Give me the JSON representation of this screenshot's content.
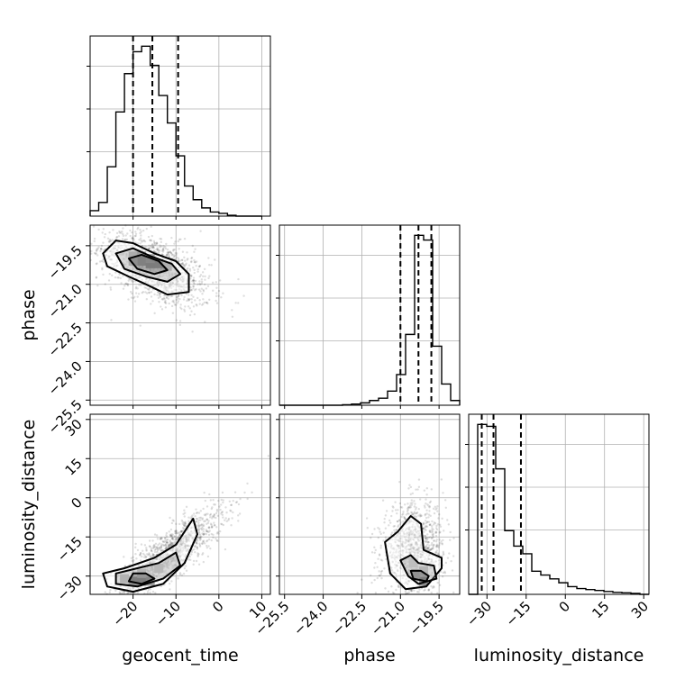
{
  "chart_data": {
    "type": "corner",
    "parameters": [
      {
        "name": "geocent_time",
        "label": "geocent_time",
        "range": [
          -30,
          12
        ],
        "ticks": [
          -20,
          -10,
          0,
          10
        ],
        "tick_labels": [
          "−20",
          "−10",
          "0",
          "10"
        ],
        "quantiles": [
          -20,
          -15.5,
          -9.5
        ]
      },
      {
        "name": "phase",
        "label": "phase",
        "range": [
          -25.7,
          -18.7
        ],
        "ticks": [
          -25.5,
          -24.0,
          -22.5,
          -21.0,
          -19.5
        ],
        "tick_labels": [
          "−25.5",
          "−24.0",
          "−22.5",
          "−21.0",
          "−19.5"
        ],
        "quantiles": [
          -21.0,
          -20.3,
          -19.8
        ]
      },
      {
        "name": "luminosity_distance",
        "label": "luminosity_distance",
        "range": [
          -37,
          32
        ],
        "ticks": [
          -30,
          -15,
          0,
          15,
          30
        ],
        "tick_labels": [
          "−30",
          "−15",
          "0",
          "15",
          "30"
        ],
        "quantiles": [
          -32,
          -27.5,
          -17
        ]
      }
    ],
    "histograms": [
      {
        "param": "geocent_time",
        "bin_edges": [
          -30,
          -28,
          -26,
          -24,
          -22,
          -20,
          -18,
          -16,
          -14,
          -12,
          -10,
          -8,
          -6,
          -4,
          -2,
          0,
          2,
          4,
          6,
          8,
          10
        ],
        "counts": [
          2,
          5,
          18,
          38,
          52,
          60,
          62,
          55,
          44,
          34,
          22,
          11,
          6,
          3,
          1.5,
          1,
          0.3,
          0,
          0,
          0
        ]
      },
      {
        "param": "phase",
        "bin_edges": [
          -25.7,
          -25.35,
          -25.0,
          -24.65,
          -24.3,
          -23.95,
          -23.6,
          -23.25,
          -22.9,
          -22.55,
          -22.2,
          -21.85,
          -21.5,
          -21.15,
          -20.8,
          -20.45,
          -20.1,
          -19.75,
          -19.4,
          -19.05,
          -18.7
        ],
        "counts": [
          0,
          0,
          0,
          0,
          0,
          0,
          0,
          0.2,
          0.5,
          1,
          2,
          3,
          6,
          13,
          30,
          72,
          70,
          25,
          9,
          2
        ]
      },
      {
        "param": "luminosity_distance",
        "bin_edges": [
          -37,
          -33.55,
          -30.1,
          -26.65,
          -23.2,
          -19.75,
          -16.3,
          -12.85,
          -9.4,
          -5.95,
          -2.5,
          0.95,
          4.4,
          7.85,
          11.3,
          14.75,
          18.2,
          21.65,
          25.1,
          28.55,
          32
        ],
        "counts": [
          0,
          88,
          87,
          65,
          33,
          25,
          21,
          12,
          10,
          8,
          6,
          4,
          3,
          2.5,
          2,
          1.5,
          1,
          0.8,
          0.5,
          0
        ]
      }
    ],
    "contour_levels": [
      0.39,
      0.86,
      0.99
    ],
    "contours": [
      {
        "x": "geocent_time",
        "y": "phase",
        "levels": [
          [
            [
              -27,
              -19.8
            ],
            [
              -24,
              -19.3
            ],
            [
              -20,
              -19.4
            ],
            [
              -15,
              -19.8
            ],
            [
              -10,
              -20.1
            ],
            [
              -7,
              -20.6
            ],
            [
              -7,
              -21.3
            ],
            [
              -12,
              -21.4
            ],
            [
              -17,
              -21.0
            ],
            [
              -21,
              -20.7
            ],
            [
              -26,
              -20.3
            ]
          ],
          [
            [
              -24,
              -19.8
            ],
            [
              -20,
              -19.6
            ],
            [
              -16,
              -19.9
            ],
            [
              -11,
              -20.2
            ],
            [
              -9,
              -20.6
            ],
            [
              -12,
              -20.9
            ],
            [
              -17,
              -20.7
            ],
            [
              -22,
              -20.4
            ]
          ],
          [
            [
              -21,
              -20.0
            ],
            [
              -18,
              -19.85
            ],
            [
              -14,
              -20.1
            ],
            [
              -12,
              -20.45
            ],
            [
              -15,
              -20.6
            ],
            [
              -19,
              -20.4
            ]
          ]
        ]
      },
      {
        "x": "geocent_time",
        "y": "luminosity_distance",
        "levels": [
          [
            [
              -27,
              -29
            ],
            [
              -22,
              -27
            ],
            [
              -15,
              -23
            ],
            [
              -10,
              -18
            ],
            [
              -6,
              -8
            ],
            [
              -5,
              -14
            ],
            [
              -8,
              -25
            ],
            [
              -13,
              -33
            ],
            [
              -20,
              -36
            ],
            [
              -26,
              -34
            ]
          ],
          [
            [
              -24,
              -29
            ],
            [
              -19,
              -27
            ],
            [
              -14,
              -25
            ],
            [
              -10,
              -21
            ],
            [
              -9,
              -26
            ],
            [
              -13,
              -31
            ],
            [
              -19,
              -34
            ],
            [
              -24,
              -33
            ]
          ],
          [
            [
              -20,
              -29
            ],
            [
              -17,
              -29
            ],
            [
              -15,
              -31
            ],
            [
              -18,
              -33
            ],
            [
              -21,
              -32
            ]
          ]
        ]
      },
      {
        "x": "phase",
        "y": "luminosity_distance",
        "levels": [
          [
            [
              -21.6,
              -17
            ],
            [
              -21.1,
              -13
            ],
            [
              -20.6,
              -7
            ],
            [
              -20.2,
              -10
            ],
            [
              -20.1,
              -20
            ],
            [
              -19.4,
              -23
            ],
            [
              -19.4,
              -27
            ],
            [
              -20.0,
              -34
            ],
            [
              -20.8,
              -35
            ],
            [
              -21.4,
              -29
            ]
          ],
          [
            [
              -21.0,
              -24
            ],
            [
              -20.6,
              -22
            ],
            [
              -20.3,
              -25
            ],
            [
              -19.7,
              -26
            ],
            [
              -19.6,
              -31
            ],
            [
              -20.3,
              -33
            ],
            [
              -20.7,
              -30
            ]
          ],
          [
            [
              -20.6,
              -28
            ],
            [
              -20.2,
              -28
            ],
            [
              -19.9,
              -30
            ],
            [
              -20.0,
              -32
            ],
            [
              -20.5,
              -31
            ]
          ]
        ]
      }
    ],
    "density_cores": [
      {
        "x": "geocent_time",
        "y": "phase",
        "cells": [
          [
            -20,
            -19.9,
            0.5
          ],
          [
            -18,
            -19.9,
            0.75
          ],
          [
            -18,
            -20.1,
            0.9
          ],
          [
            -16,
            -20.2,
            1.0
          ],
          [
            -14,
            -20.2,
            0.95
          ],
          [
            -20,
            -20.1,
            0.55
          ],
          [
            -16,
            -20.0,
            0.7
          ],
          [
            -12,
            -20.3,
            0.45
          ]
        ]
      },
      {
        "x": "geocent_time",
        "y": "luminosity_distance",
        "cells": [
          [
            -20,
            -32,
            0.95
          ],
          [
            -18,
            -32,
            1.0
          ],
          [
            -16,
            -32,
            0.8
          ],
          [
            -18,
            -29,
            0.35
          ],
          [
            -14,
            -27,
            0.3
          ],
          [
            -22,
            -31,
            0.4
          ]
        ]
      },
      {
        "x": "phase",
        "y": "luminosity_distance",
        "cells": [
          [
            -20.1,
            -32,
            1.0
          ],
          [
            -20.4,
            -29,
            0.45
          ],
          [
            -20.1,
            -28,
            0.35
          ],
          [
            -20.5,
            -25,
            0.2
          ]
        ]
      }
    ],
    "scatter_clouds": [
      {
        "x": "geocent_time",
        "y": "phase",
        "center": [
          -15,
          -20.4
        ],
        "spread": [
          6.5,
          0.75
        ],
        "correlation": -0.55,
        "count": 1300
      },
      {
        "x": "geocent_time",
        "y": "luminosity_distance",
        "center": [
          -12,
          -22
        ],
        "spread": [
          6.5,
          9
        ],
        "correlation": 0.85,
        "count": 1300
      },
      {
        "x": "phase",
        "y": "luminosity_distance",
        "center": [
          -20.5,
          -20
        ],
        "spread": [
          0.6,
          9
        ],
        "correlation": 0.1,
        "count": 1100
      }
    ]
  }
}
